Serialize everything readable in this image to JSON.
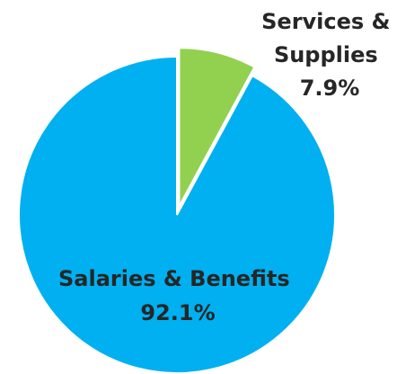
{
  "chart_data": {
    "type": "pie",
    "title": "",
    "slices": [
      {
        "label": "Salaries & Benefits",
        "value": 92.1,
        "display": "92.1%",
        "color": "#00B0F0"
      },
      {
        "label": "Services & Supplies",
        "value": 7.9,
        "display": "7.9%",
        "color": "#92D050"
      }
    ],
    "legend": "none",
    "exploded": "Services & Supplies"
  }
}
